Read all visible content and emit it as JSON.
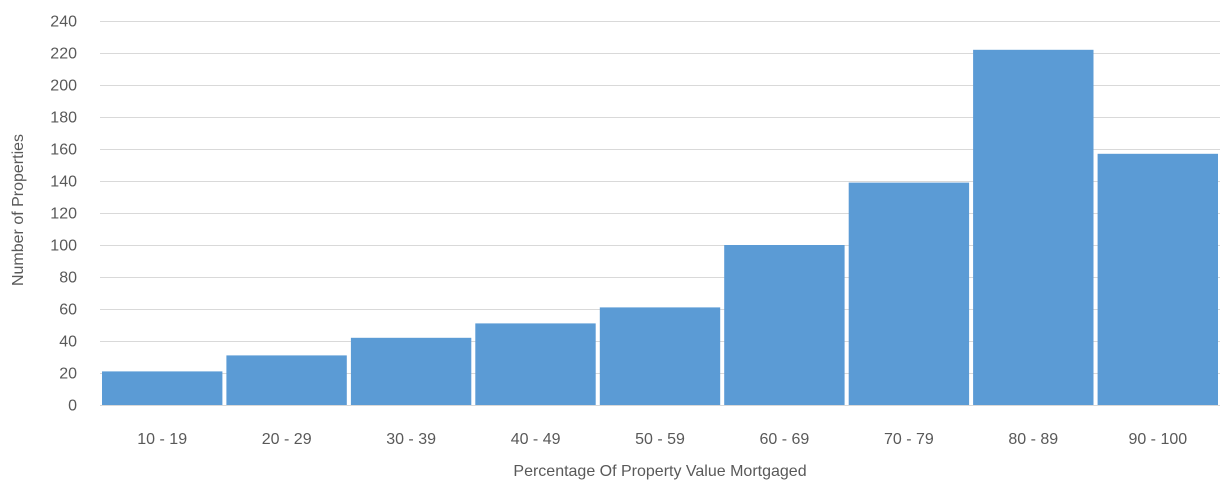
{
  "chart_data": {
    "type": "bar",
    "title": "",
    "xlabel": "Percentage Of Property Value Mortgaged",
    "ylabel": "Number of Properties",
    "categories": [
      "10 - 19",
      "20 - 29",
      "30 - 39",
      "40 - 49",
      "50 - 59",
      "60 - 69",
      "70 - 79",
      "80 - 89",
      "90 - 100"
    ],
    "values": [
      21,
      31,
      42,
      51,
      61,
      100,
      139,
      222,
      157
    ],
    "ylim": [
      0,
      240
    ],
    "yticks": [
      "0",
      "20",
      "40",
      "60",
      "80",
      "100",
      "120",
      "140",
      "160",
      "180",
      "200",
      "220",
      "240"
    ],
    "grid": true,
    "legend": "none",
    "colors": {
      "bar": "#5b9bd5",
      "grid": "#d9d9d9",
      "text": "#595959"
    }
  }
}
